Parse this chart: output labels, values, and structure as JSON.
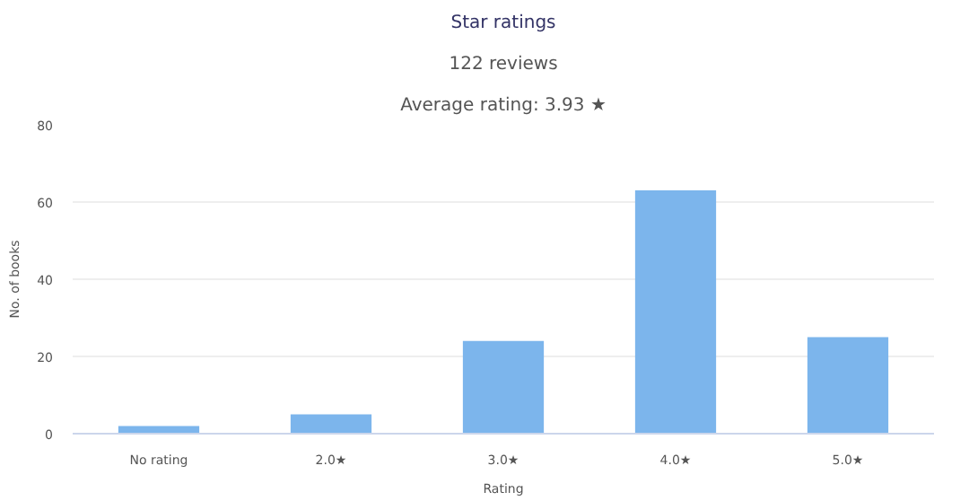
{
  "chart_data": {
    "type": "bar",
    "title": "Star ratings",
    "subtitle": "122 reviews",
    "annotations": [
      "Average rating: 3.93 ★"
    ],
    "categories": [
      "No rating",
      "2.0★",
      "3.0★",
      "4.0★",
      "5.0★"
    ],
    "values": [
      2,
      5,
      24,
      63,
      25
    ],
    "color": "#7cb5ec",
    "xlabel": "Rating",
    "ylabel": "No. of books",
    "ylim": [
      0,
      80
    ],
    "yticks": [
      0,
      20,
      40,
      60,
      80
    ],
    "grid": "y"
  }
}
